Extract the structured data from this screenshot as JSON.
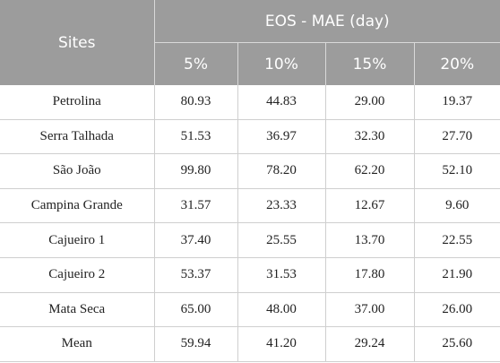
{
  "table": {
    "header": {
      "sites": "Sites",
      "group": "EOS - MAE (day)",
      "columns": [
        "5%",
        "10%",
        "15%",
        "20%"
      ]
    },
    "rows": [
      [
        "Petrolina",
        "80.93",
        "44.83",
        "29.00",
        "19.37"
      ],
      [
        "Serra Talhada",
        "51.53",
        "36.97",
        "32.30",
        "27.70"
      ],
      [
        "São João",
        "99.80",
        "78.20",
        "62.20",
        "52.10"
      ],
      [
        "Campina Grande",
        "31.57",
        "23.33",
        "12.67",
        "9.60"
      ],
      [
        "Cajueiro 1",
        "37.40",
        "25.55",
        "13.70",
        "22.55"
      ],
      [
        "Cajueiro 2",
        "53.37",
        "31.53",
        "17.80",
        "21.90"
      ],
      [
        "Mata Seca",
        "65.00",
        "48.00",
        "37.00",
        "26.00"
      ],
      [
        "Mean",
        "59.94",
        "41.20",
        "29.24",
        "25.60"
      ]
    ]
  }
}
